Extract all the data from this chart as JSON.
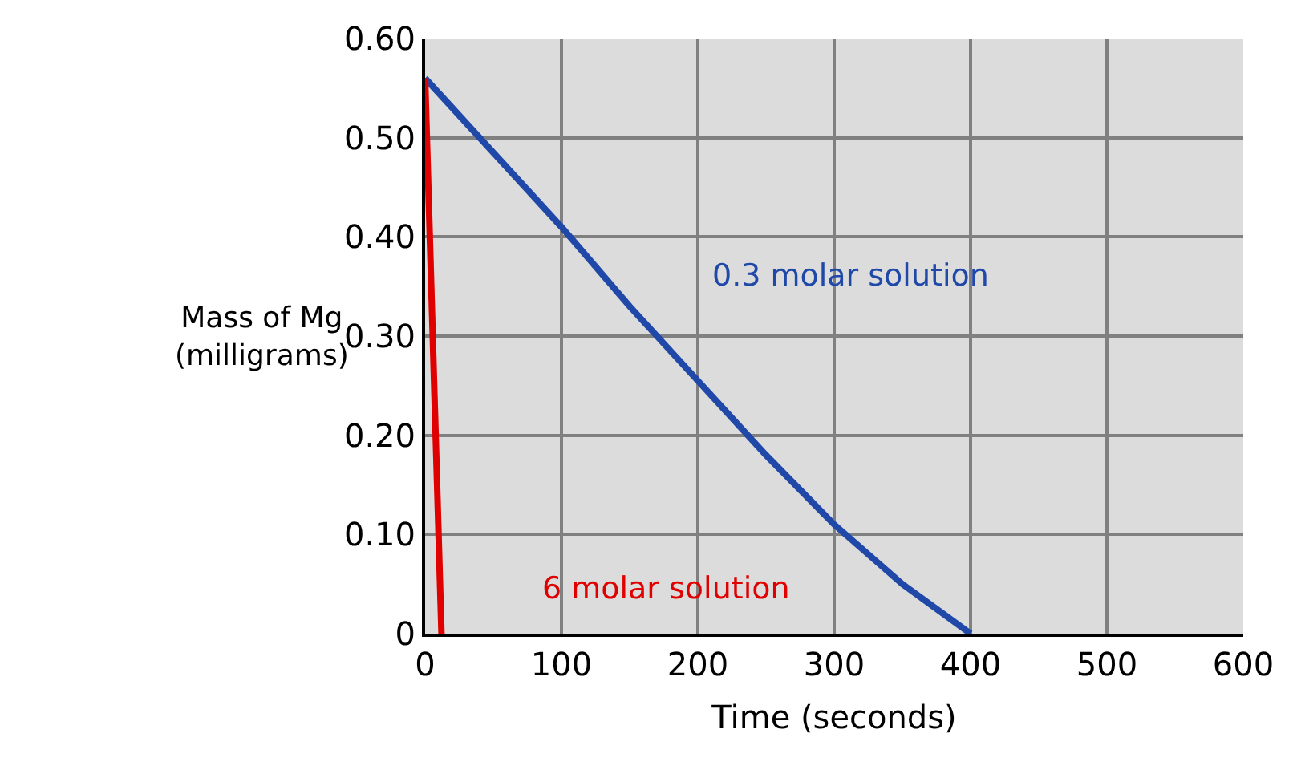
{
  "chart_data": {
    "type": "line",
    "xlabel": "Time (seconds)",
    "ylabel": "Mass of Mg\n(milligrams)",
    "xlim": [
      0,
      600
    ],
    "xticks": [
      0,
      100,
      200,
      300,
      400,
      500,
      600
    ],
    "ylim": [
      0,
      0.6
    ],
    "yticks": [
      {
        "value": 0,
        "label": "0"
      },
      {
        "value": 0.1,
        "label": "0.10"
      },
      {
        "value": 0.2,
        "label": "0.20"
      },
      {
        "value": 0.3,
        "label": "0.30"
      },
      {
        "value": 0.4,
        "label": "0.40"
      },
      {
        "value": 0.5,
        "label": "0.50"
      },
      {
        "value": 0.6,
        "label": "0.60"
      }
    ],
    "grid": true,
    "legend": false,
    "marker": "none",
    "line_style": "solid",
    "series": [
      {
        "name": "0.3 molar solution",
        "color": "#1f48a8",
        "x": [
          0,
          50,
          100,
          150,
          200,
          250,
          300,
          350,
          400
        ],
        "values": [
          0.56,
          0.485,
          0.41,
          0.33,
          0.255,
          0.18,
          0.11,
          0.05,
          0
        ]
      },
      {
        "name": "6 molar solution",
        "color": "#e00000",
        "x": [
          0,
          12
        ],
        "values": [
          0.56,
          0
        ]
      }
    ]
  }
}
